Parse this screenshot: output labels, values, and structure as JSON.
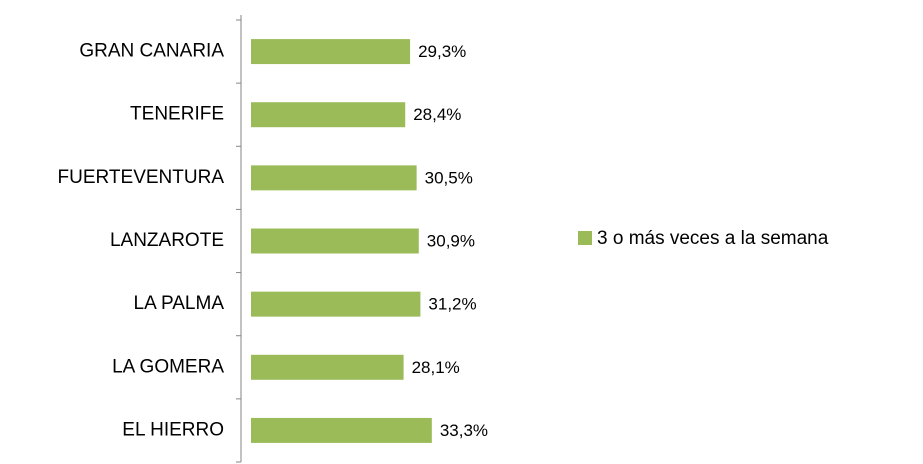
{
  "chart_data": {
    "type": "hbar",
    "categories": [
      "GRAN CANARIA",
      "TENERIFE",
      "FUERTEVENTURA",
      "LANZAROTE",
      "LA PALMA",
      "LA GOMERA",
      "EL HIERRO"
    ],
    "series": [
      {
        "name": "3 o más veces a la semana",
        "color": "#9bbb59",
        "values": [
          29.3,
          28.4,
          30.5,
          30.9,
          31.2,
          28.1,
          33.3
        ],
        "value_labels": [
          "29,3%",
          "28,4%",
          "30,5%",
          "30,9%",
          "31,2%",
          "28,1%",
          "33,3%"
        ]
      }
    ],
    "xlim": [
      0,
      100
    ],
    "legend": "right"
  }
}
